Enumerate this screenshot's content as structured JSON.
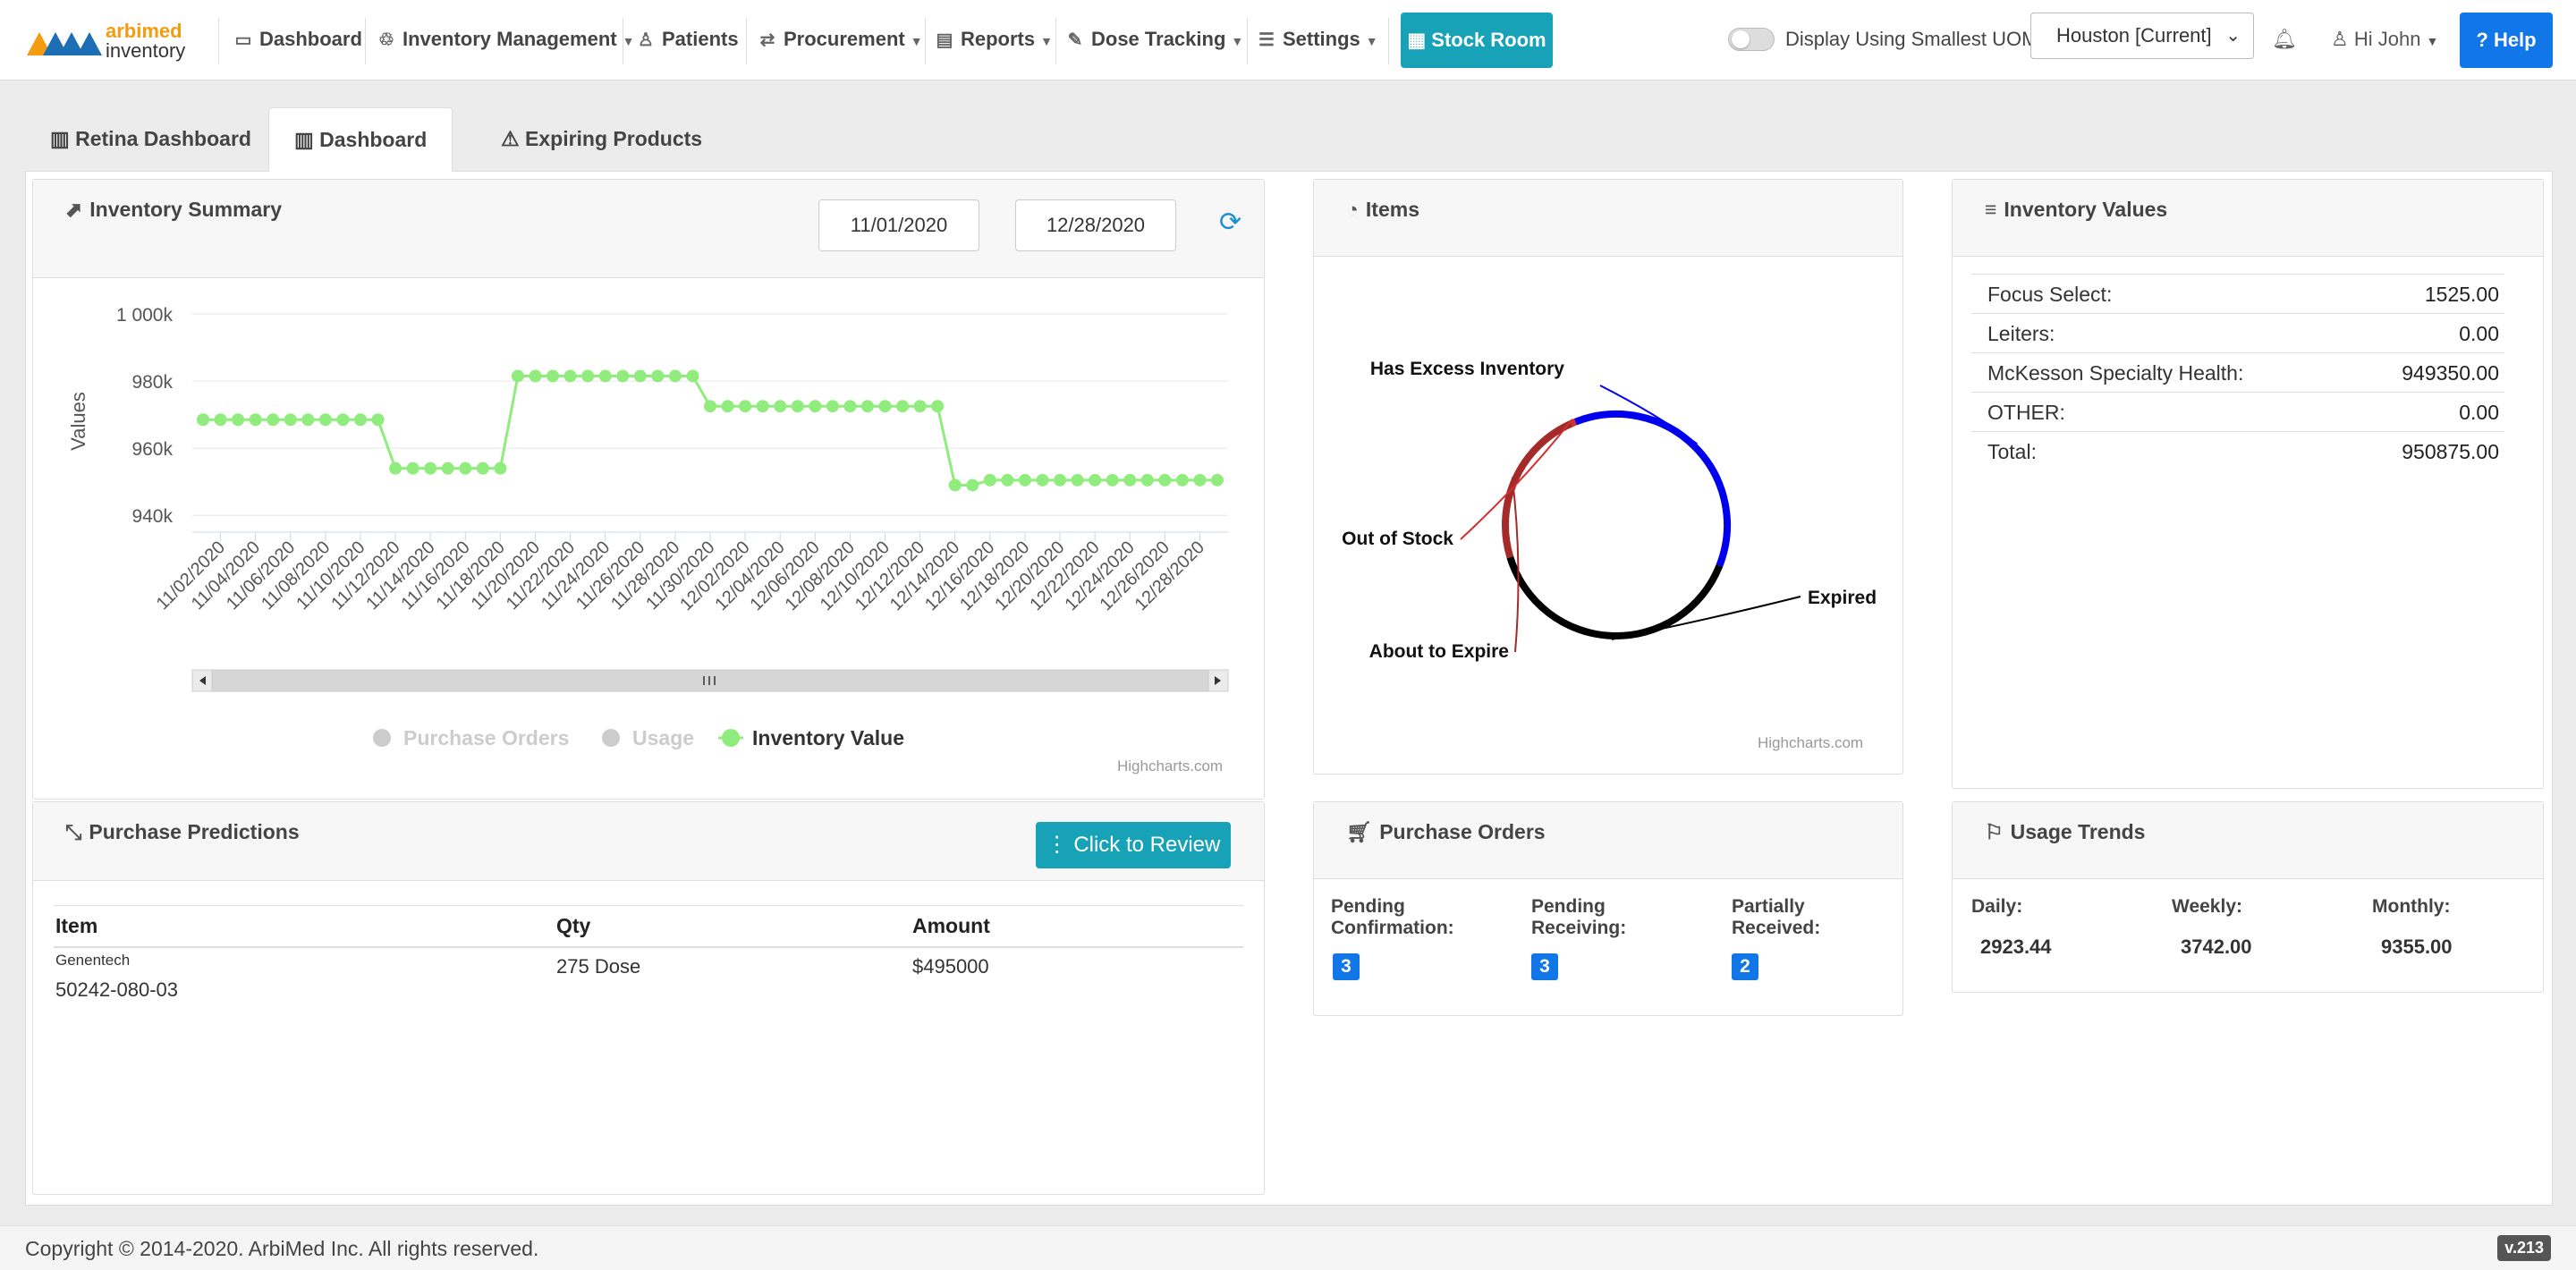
{
  "nav": {
    "brand_top": "arbimed",
    "brand_bottom": "inventory",
    "items": [
      {
        "label": "Dashboard",
        "icon": "monitor-icon",
        "caret": false
      },
      {
        "label": "Inventory Management",
        "icon": "handshake-icon",
        "caret": true
      },
      {
        "label": "Patients",
        "icon": "patient-icon",
        "caret": false
      },
      {
        "label": "Procurement",
        "icon": "exchange-icon",
        "caret": true
      },
      {
        "label": "Reports",
        "icon": "report-icon",
        "caret": true
      },
      {
        "label": "Dose Tracking",
        "icon": "syringe-icon",
        "caret": true
      },
      {
        "label": "Settings",
        "icon": "sliders-icon",
        "caret": true
      }
    ],
    "stock_room": "Stock Room",
    "toggle_label": "Display Using Smallest UOM",
    "toggle_on": false,
    "location": "Houston [Current]",
    "user_greeting": "Hi John",
    "help": "Help"
  },
  "tabs": [
    "Retina Dashboard",
    "Dashboard",
    "Expiring Products"
  ],
  "active_tab": "Dashboard",
  "inventory_summary": {
    "title": "Inventory Summary",
    "date_from": "11/01/2020",
    "date_sep": "-",
    "date_to": "12/28/2020",
    "credit": "Highcharts.com"
  },
  "chart_data": [
    {
      "type": "line",
      "title": "",
      "ylabel": "Values",
      "ylim": [
        935000,
        1000000
      ],
      "y_ticks": [
        "940k",
        "960k",
        "980k",
        "1 000k"
      ],
      "x_tick_labels": [
        "11/02/2020",
        "11/04/2020",
        "11/06/2020",
        "11/08/2020",
        "11/10/2020",
        "11/12/2020",
        "11/14/2020",
        "11/16/2020",
        "11/18/2020",
        "11/20/2020",
        "11/22/2020",
        "11/24/2020",
        "11/26/2020",
        "11/28/2020",
        "11/30/2020",
        "12/02/2020",
        "12/04/2020",
        "12/06/2020",
        "12/08/2020",
        "12/10/2020",
        "12/12/2020",
        "12/14/2020",
        "12/16/2020",
        "12/18/2020",
        "12/20/2020",
        "12/22/2020",
        "12/24/2020",
        "12/26/2020",
        "12/28/2020"
      ],
      "legend": [
        {
          "name": "Purchase Orders",
          "visible": false,
          "color": "#cccccc"
        },
        {
          "name": "Usage",
          "visible": false,
          "color": "#cccccc"
        },
        {
          "name": "Inventory Value",
          "visible": true,
          "color": "#90ed7d"
        }
      ],
      "series": [
        {
          "name": "Inventory Value",
          "color": "#90ed7d",
          "values": [
            968500,
            968500,
            968500,
            968500,
            968500,
            968500,
            968500,
            968500,
            968500,
            968500,
            968500,
            954000,
            954000,
            954000,
            954000,
            954000,
            954000,
            954000,
            981500,
            981500,
            981500,
            981500,
            981500,
            981500,
            981500,
            981500,
            981500,
            981500,
            981500,
            972500,
            972500,
            972500,
            972500,
            972500,
            972500,
            972500,
            972500,
            972500,
            972500,
            972500,
            972500,
            972500,
            972500,
            949000,
            949000,
            950500,
            950500,
            950500,
            950500,
            950500,
            950500,
            950500,
            950500,
            950500,
            950500,
            950500,
            950500,
            950500,
            950500
          ]
        }
      ]
    },
    {
      "type": "pie",
      "title": "Items",
      "slices": [
        {
          "name": "Has Excess Inventory",
          "value": 32,
          "color": "#0000ee"
        },
        {
          "name": "Expired",
          "value": 34,
          "color": "#000000"
        },
        {
          "name": "About to Expire",
          "value": 20,
          "color": "#a52a2a"
        },
        {
          "name": "Out of Stock",
          "value": 0.5,
          "color": "#d03030"
        }
      ],
      "credit": "Highcharts.com"
    }
  ],
  "items_panel": {
    "title": "Items"
  },
  "inventory_values": {
    "title": "Inventory Values",
    "rows": [
      {
        "label": "Focus Select:",
        "value": "1525.00"
      },
      {
        "label": "Leiters:",
        "value": "0.00"
      },
      {
        "label": "McKesson Specialty Health:",
        "value": "949350.00"
      },
      {
        "label": "OTHER:",
        "value": "0.00"
      },
      {
        "label": "Total:",
        "value": "950875.00"
      }
    ]
  },
  "purchase_predictions": {
    "title": "Purchase Predictions",
    "button": "Click to Review",
    "headers": [
      "Item",
      "Qty",
      "Amount"
    ],
    "rows": [
      {
        "manufacturer": "Genentech",
        "ndc": "50242-080-03",
        "qty": "275 Dose",
        "amount": "$495000"
      }
    ]
  },
  "purchase_orders": {
    "title": "Purchase Orders",
    "items": [
      {
        "line1": "Pending",
        "line2": "Confirmation:",
        "count": "3"
      },
      {
        "line1": "Pending",
        "line2": "Receiving:",
        "count": "3"
      },
      {
        "line1": "Partially",
        "line2": "Received:",
        "count": "2"
      }
    ]
  },
  "usage_trends": {
    "title": "Usage Trends",
    "items": [
      {
        "label": "Daily:",
        "value": "2923.44"
      },
      {
        "label": "Weekly:",
        "value": "3742.00"
      },
      {
        "label": "Monthly:",
        "value": "9355.00"
      }
    ]
  },
  "footer": {
    "copyright": "Copyright © 2014-2020. ArbiMed Inc. All rights reserved.",
    "version": "v.213"
  }
}
